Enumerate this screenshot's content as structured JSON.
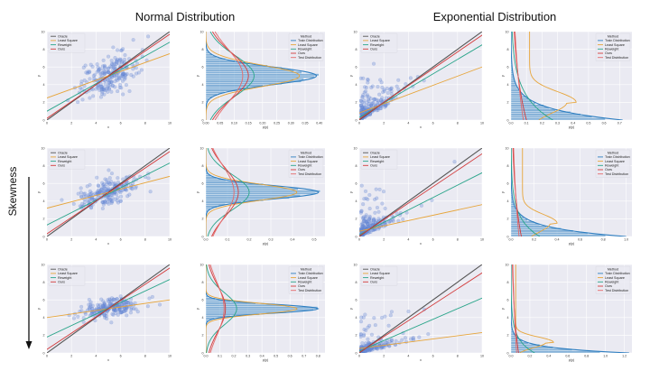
{
  "figure": {
    "col_titles": [
      "Normal Distribution",
      "Exponential Distribution"
    ],
    "row_label": "Skewness"
  },
  "colors": {
    "Oracle": "#555555",
    "Least Square": "#e7a53a",
    "Reweight": "#2aa58a",
    "Ours": "#d33b3b",
    "Train Distribution": "#2f7fc1",
    "Test Distribution": "#e56a6a",
    "panel_bg": "#eaeaf2",
    "scatter": "#6f8fd6"
  },
  "chart_data": [
    {
      "id": "r1c1",
      "type": "scatter",
      "dist": "normal",
      "row": 0,
      "col": 0,
      "xlabel": "x",
      "ylabel": "y",
      "xlim": [
        0,
        10
      ],
      "ylim": [
        0,
        10
      ],
      "xticks": [
        "0",
        "2",
        "4",
        "6",
        "8",
        "10"
      ],
      "yticks": [
        "0",
        "2",
        "4",
        "6",
        "8",
        "10"
      ],
      "legend_title": "",
      "legend": [
        "Oracle",
        "Least Square",
        "Reweight",
        "Ours"
      ],
      "points": {
        "cx": 5,
        "cy": 5,
        "sx": 1.2,
        "sy": 1.1,
        "n": 220,
        "slope": 0.55
      },
      "lines": [
        {
          "name": "Oracle",
          "a": 0,
          "b": 1
        },
        {
          "name": "Least Square",
          "a": 2.5,
          "b": 0.5
        },
        {
          "name": "Reweight",
          "a": 1.0,
          "b": 0.78
        },
        {
          "name": "Ours",
          "a": 0.2,
          "b": 0.95
        }
      ]
    },
    {
      "id": "r1c2",
      "type": "hist",
      "dist": "normal",
      "row": 0,
      "col": 1,
      "xlabel": "p(y)",
      "ylabel": "y",
      "xlim": [
        0,
        0.42
      ],
      "ylim": [
        0,
        10
      ],
      "xticks": [
        "0.00",
        "0.05",
        "0.10",
        "0.15",
        "0.20",
        "0.25",
        "0.30",
        "0.35",
        "0.40"
      ],
      "yticks": [
        "0",
        "2",
        "4",
        "6",
        "8",
        "10"
      ],
      "legend_title": "Method",
      "legend": [
        "Train Distribution",
        "Least Square",
        "Reweight",
        "Ours",
        "Test Distribution"
      ],
      "hist": {
        "kind": "normal",
        "center": 5,
        "spread": 1.0,
        "peak": 0.39
      },
      "curves": [
        {
          "name": "Least Square",
          "kind": "normal",
          "center": 5,
          "spread": 1.2,
          "peak": 0.33
        },
        {
          "name": "Reweight",
          "kind": "normal",
          "center": 5,
          "spread": 2.3,
          "peak": 0.17
        },
        {
          "name": "Ours",
          "kind": "normal",
          "center": 5,
          "spread": 2.6,
          "peak": 0.15
        },
        {
          "name": "Test Distribution",
          "kind": "normal",
          "center": 5,
          "spread": 3.0,
          "peak": 0.13
        }
      ]
    },
    {
      "id": "r1c3",
      "type": "scatter",
      "dist": "exponential",
      "row": 0,
      "col": 2,
      "xlabel": "x",
      "ylabel": "y",
      "xlim": [
        0,
        10
      ],
      "ylim": [
        0,
        10
      ],
      "xticks": [
        "0",
        "2",
        "4",
        "6",
        "8",
        "10"
      ],
      "yticks": [
        "0",
        "2",
        "4",
        "6",
        "8",
        "10"
      ],
      "legend_title": "",
      "legend": [
        "Oracle",
        "Least Square",
        "Reweight",
        "Ours"
      ],
      "points": {
        "cx": 1.3,
        "cy": 1.3,
        "sx": 1.2,
        "sy": 1.2,
        "n": 200,
        "slope": 0.7,
        "exp": true
      },
      "lines": [
        {
          "name": "Oracle",
          "a": 0,
          "b": 1
        },
        {
          "name": "Least Square",
          "a": 0.8,
          "b": 0.52
        },
        {
          "name": "Reweight",
          "a": 0.3,
          "b": 0.82
        },
        {
          "name": "Ours",
          "a": 0.1,
          "b": 0.95
        }
      ]
    },
    {
      "id": "r1c4",
      "type": "hist",
      "dist": "exponential",
      "row": 0,
      "col": 3,
      "xlabel": "p(y)",
      "ylabel": "y",
      "xlim": [
        0,
        0.78
      ],
      "ylim": [
        0,
        10
      ],
      "xticks": [
        "0.0",
        "0.1",
        "0.2",
        "0.3",
        "0.4",
        "0.5",
        "0.6",
        "0.7"
      ],
      "yticks": [
        "0",
        "2",
        "4",
        "6",
        "8",
        "10"
      ],
      "legend_title": "Method",
      "legend": [
        "Train Distribution",
        "Least Square",
        "Reweight",
        "Ours",
        "Test Distribution"
      ],
      "hist": {
        "kind": "exp",
        "scale": 1.3,
        "peak": 0.72
      },
      "curves": [
        {
          "name": "Least Square",
          "kind": "bump",
          "center": 2,
          "spread": 1.2,
          "peak": 0.3,
          "base": 0.12
        },
        {
          "name": "Reweight",
          "kind": "exp",
          "scale": 2.8,
          "peak": 0.27
        },
        {
          "name": "Ours",
          "kind": "exp",
          "scale": 6.5,
          "peak": 0.1
        },
        {
          "name": "Test Distribution",
          "kind": "exp",
          "scale": 9.0,
          "peak": 0.08
        }
      ]
    },
    {
      "id": "r2c1",
      "type": "scatter",
      "dist": "normal",
      "row": 1,
      "col": 0,
      "xlabel": "x",
      "ylabel": "y",
      "xlim": [
        0,
        10
      ],
      "ylim": [
        0,
        10
      ],
      "xticks": [
        "0",
        "2",
        "4",
        "6",
        "8",
        "10"
      ],
      "yticks": [
        "0",
        "2",
        "4",
        "6",
        "8",
        "10"
      ],
      "legend_title": "",
      "legend": [
        "Oracle",
        "Least Square",
        "Reweight",
        "Ours"
      ],
      "points": {
        "cx": 5,
        "cy": 5,
        "sx": 1.2,
        "sy": 0.7,
        "n": 220,
        "slope": 0.4
      },
      "lines": [
        {
          "name": "Oracle",
          "a": 0,
          "b": 1
        },
        {
          "name": "Least Square",
          "a": 3.2,
          "b": 0.36
        },
        {
          "name": "Reweight",
          "a": 1.3,
          "b": 0.7
        },
        {
          "name": "Ours",
          "a": 0.3,
          "b": 0.93
        }
      ]
    },
    {
      "id": "r2c2",
      "type": "hist",
      "dist": "normal",
      "row": 1,
      "col": 1,
      "xlabel": "p(y)",
      "ylabel": "y",
      "xlim": [
        0,
        0.55
      ],
      "ylim": [
        0,
        10
      ],
      "xticks": [
        "0.0",
        "0.1",
        "0.2",
        "0.3",
        "0.4",
        "0.5"
      ],
      "yticks": [
        "0",
        "2",
        "4",
        "6",
        "8",
        "10"
      ],
      "legend_title": "Method",
      "legend": [
        "Train Distribution",
        "Least Square",
        "Reweight",
        "Ours",
        "Test Distribution"
      ],
      "hist": {
        "kind": "normal",
        "center": 5,
        "spread": 0.75,
        "peak": 0.52
      },
      "curves": [
        {
          "name": "Least Square",
          "kind": "normal",
          "center": 5,
          "spread": 0.9,
          "peak": 0.42
        },
        {
          "name": "Reweight",
          "kind": "normal",
          "center": 5,
          "spread": 2.0,
          "peak": 0.2
        },
        {
          "name": "Ours",
          "kind": "normal",
          "center": 5,
          "spread": 2.7,
          "peak": 0.15
        },
        {
          "name": "Test Distribution",
          "kind": "normal",
          "center": 5,
          "spread": 3.0,
          "peak": 0.13
        }
      ]
    },
    {
      "id": "r2c3",
      "type": "scatter",
      "dist": "exponential",
      "row": 1,
      "col": 2,
      "xlabel": "x",
      "ylabel": "y",
      "xlim": [
        0,
        10
      ],
      "ylim": [
        0,
        10
      ],
      "xticks": [
        "0",
        "2",
        "4",
        "6",
        "8",
        "10"
      ],
      "yticks": [
        "0",
        "2",
        "4",
        "6",
        "8",
        "10"
      ],
      "legend_title": "",
      "legend": [
        "Oracle",
        "Least Square",
        "Reweight",
        "Ours"
      ],
      "points": {
        "cx": 1.1,
        "cy": 1.0,
        "sx": 1.0,
        "sy": 0.9,
        "n": 200,
        "slope": 0.55,
        "exp": true
      },
      "lines": [
        {
          "name": "Oracle",
          "a": 0,
          "b": 1
        },
        {
          "name": "Least Square",
          "a": 0.6,
          "b": 0.3
        },
        {
          "name": "Reweight",
          "a": 0.2,
          "b": 0.7
        },
        {
          "name": "Ours",
          "a": 0.05,
          "b": 0.93
        }
      ]
    },
    {
      "id": "r2c4",
      "type": "hist",
      "dist": "exponential",
      "row": 1,
      "col": 3,
      "xlabel": "p(y)",
      "ylabel": "y",
      "xlim": [
        0,
        1.05
      ],
      "ylim": [
        0,
        10
      ],
      "xticks": [
        "0.0",
        "0.2",
        "0.4",
        "0.6",
        "0.8",
        "1.0"
      ],
      "yticks": [
        "0",
        "2",
        "4",
        "6",
        "8",
        "10"
      ],
      "legend_title": "Method",
      "legend": [
        "Train Distribution",
        "Least Square",
        "Reweight",
        "Ours",
        "Test Distribution"
      ],
      "hist": {
        "kind": "exp",
        "scale": 1.0,
        "peak": 1.0
      },
      "curves": [
        {
          "name": "Least Square",
          "kind": "bump",
          "center": 1.5,
          "spread": 1.0,
          "peak": 0.3,
          "base": 0.1
        },
        {
          "name": "Reweight",
          "kind": "exp",
          "scale": 2.0,
          "peak": 0.25
        },
        {
          "name": "Ours",
          "kind": "exp",
          "scale": 6.0,
          "peak": 0.09
        },
        {
          "name": "Test Distribution",
          "kind": "exp",
          "scale": 9.0,
          "peak": 0.07
        }
      ]
    },
    {
      "id": "r3c1",
      "type": "scatter",
      "dist": "normal",
      "row": 2,
      "col": 0,
      "xlabel": "x",
      "ylabel": "y",
      "xlim": [
        0,
        10
      ],
      "ylim": [
        0,
        10
      ],
      "xticks": [
        "0",
        "2",
        "4",
        "6",
        "8",
        "10"
      ],
      "yticks": [
        "0",
        "2",
        "4",
        "6",
        "8",
        "10"
      ],
      "legend_title": "",
      "legend": [
        "Oracle",
        "Least Square",
        "Reweight",
        "Ours"
      ],
      "points": {
        "cx": 5,
        "cy": 5,
        "sx": 1.2,
        "sy": 0.5,
        "n": 220,
        "slope": 0.2
      },
      "lines": [
        {
          "name": "Oracle",
          "a": 0,
          "b": 1
        },
        {
          "name": "Least Square",
          "a": 4.0,
          "b": 0.2
        },
        {
          "name": "Reweight",
          "a": 1.8,
          "b": 0.65
        },
        {
          "name": "Ours",
          "a": 0.4,
          "b": 0.92
        }
      ]
    },
    {
      "id": "r3c2",
      "type": "hist",
      "dist": "normal",
      "row": 2,
      "col": 1,
      "xlabel": "p(y)",
      "ylabel": "y",
      "xlim": [
        0,
        0.85
      ],
      "ylim": [
        0,
        10
      ],
      "xticks": [
        "0.0",
        "0.1",
        "0.2",
        "0.3",
        "0.4",
        "0.5",
        "0.6",
        "0.7",
        "0.8"
      ],
      "yticks": [
        "0",
        "2",
        "4",
        "6",
        "8",
        "10"
      ],
      "legend_title": "Method",
      "legend": [
        "Train Distribution",
        "Least Square",
        "Reweight",
        "Ours",
        "Test Distribution"
      ],
      "hist": {
        "kind": "normal",
        "center": 5,
        "spread": 0.5,
        "peak": 0.8
      },
      "curves": [
        {
          "name": "Least Square",
          "kind": "normal",
          "center": 5,
          "spread": 0.6,
          "peak": 0.65
        },
        {
          "name": "Reweight",
          "kind": "normal",
          "center": 5,
          "spread": 1.8,
          "peak": 0.22
        },
        {
          "name": "Ours",
          "kind": "normal",
          "center": 5,
          "spread": 2.6,
          "peak": 0.14
        },
        {
          "name": "Test Distribution",
          "kind": "normal",
          "center": 5,
          "spread": 3.0,
          "peak": 0.13
        }
      ]
    },
    {
      "id": "r3c3",
      "type": "scatter",
      "dist": "exponential",
      "row": 2,
      "col": 2,
      "xlabel": "x",
      "ylabel": "y",
      "xlim": [
        0,
        10
      ],
      "ylim": [
        0,
        10
      ],
      "xticks": [
        "0",
        "2",
        "4",
        "6",
        "8",
        "10"
      ],
      "yticks": [
        "0",
        "2",
        "4",
        "6",
        "8",
        "10"
      ],
      "legend_title": "",
      "legend": [
        "Oracle",
        "Least Square",
        "Reweight",
        "Ours"
      ],
      "points": {
        "cx": 1.0,
        "cy": 0.6,
        "sx": 1.0,
        "sy": 0.5,
        "n": 200,
        "slope": 0.3,
        "exp": true
      },
      "lines": [
        {
          "name": "Oracle",
          "a": 0,
          "b": 1
        },
        {
          "name": "Least Square",
          "a": 0.5,
          "b": 0.18
        },
        {
          "name": "Reweight",
          "a": 0.2,
          "b": 0.6
        },
        {
          "name": "Ours",
          "a": 0.05,
          "b": 0.9
        }
      ]
    },
    {
      "id": "r3c4",
      "type": "hist",
      "dist": "exponential",
      "row": 2,
      "col": 3,
      "xlabel": "p(y)",
      "ylabel": "y",
      "xlim": [
        0,
        1.28
      ],
      "ylim": [
        0,
        10
      ],
      "xticks": [
        "0.0",
        "0.2",
        "0.4",
        "0.6",
        "0.8",
        "1.0",
        "1.2"
      ],
      "yticks": [
        "0",
        "2",
        "4",
        "6",
        "8",
        "10"
      ],
      "legend_title": "Method",
      "legend": [
        "Train Distribution",
        "Least Square",
        "Reweight",
        "Ours",
        "Test Distribution"
      ],
      "hist": {
        "kind": "exp",
        "scale": 0.6,
        "peak": 1.25
      },
      "curves": [
        {
          "name": "Least Square",
          "kind": "bump",
          "center": 1.2,
          "spread": 0.6,
          "peak": 0.4,
          "base": 0.05
        },
        {
          "name": "Reweight",
          "kind": "exp",
          "scale": 1.5,
          "peak": 0.25
        },
        {
          "name": "Ours",
          "kind": "exp",
          "scale": 6.0,
          "peak": 0.08
        },
        {
          "name": "Test Distribution",
          "kind": "exp",
          "scale": 9.0,
          "peak": 0.06
        }
      ]
    }
  ]
}
